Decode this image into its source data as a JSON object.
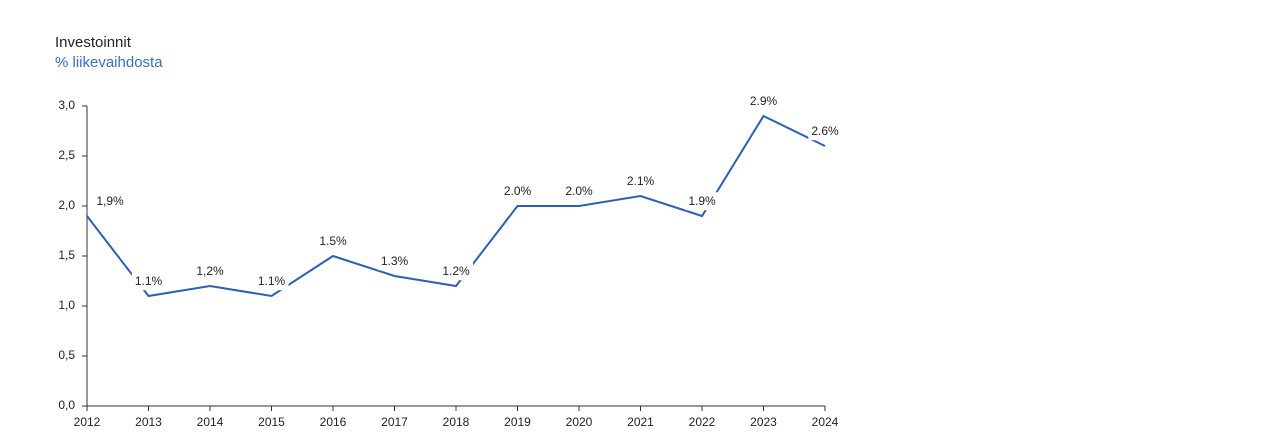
{
  "chart_data": {
    "type": "line",
    "title": "Investoinnit",
    "subtitle": "% liikevaihdosta",
    "categories": [
      "2012",
      "2013",
      "2014",
      "2015",
      "2016",
      "2017",
      "2018",
      "2019",
      "2020",
      "2021",
      "2022",
      "2023",
      "2024"
    ],
    "values": [
      1.9,
      1.1,
      1.2,
      1.1,
      1.5,
      1.3,
      1.2,
      2.0,
      2.0,
      2.1,
      1.9,
      2.9,
      2.6
    ],
    "value_labels": [
      "1,9%",
      "1.1%",
      "1,2%",
      "1.1%",
      "1.5%",
      "1.3%",
      "1.2%",
      "2.0%",
      "2.0%",
      "2.1%",
      "1.9%",
      "2.9%",
      "2.6%"
    ],
    "color": "#2d5fb3",
    "ylim": [
      0,
      3
    ],
    "yticks": [
      {
        "value": 0,
        "label": "0,0"
      },
      {
        "value": 0.5,
        "label": "0,5"
      },
      {
        "value": 1,
        "label": "1,0"
      },
      {
        "value": 1.5,
        "label": "1,5"
      },
      {
        "value": 2,
        "label": "2,0"
      },
      {
        "value": 2.5,
        "label": "2,5"
      },
      {
        "value": 3,
        "label": "3,0"
      }
    ],
    "grid": false
  }
}
